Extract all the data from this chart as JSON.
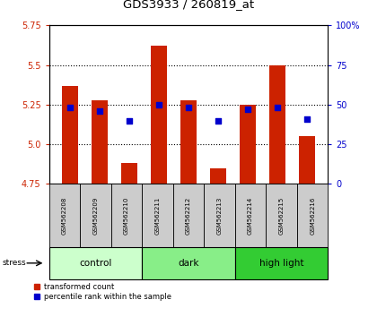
{
  "title": "GDS3933 / 260819_at",
  "samples": [
    "GSM562208",
    "GSM562209",
    "GSM562210",
    "GSM562211",
    "GSM562212",
    "GSM562213",
    "GSM562214",
    "GSM562215",
    "GSM562216"
  ],
  "bar_values": [
    5.37,
    5.28,
    4.88,
    5.62,
    5.28,
    4.85,
    5.25,
    5.5,
    5.05
  ],
  "percentile_values": [
    48,
    46,
    40,
    50,
    48,
    40,
    47,
    48,
    41
  ],
  "ylim_left": [
    4.75,
    5.75
  ],
  "ylim_right": [
    0,
    100
  ],
  "yticks_left": [
    4.75,
    5.0,
    5.25,
    5.5,
    5.75
  ],
  "yticks_right": [
    0,
    25,
    50,
    75,
    100
  ],
  "groups": [
    {
      "label": "control",
      "indices": [
        0,
        1,
        2
      ],
      "color": "#ccffcc"
    },
    {
      "label": "dark",
      "indices": [
        3,
        4,
        5
      ],
      "color": "#88ee88"
    },
    {
      "label": "high light",
      "indices": [
        6,
        7,
        8
      ],
      "color": "#33cc33"
    }
  ],
  "bar_color": "#cc2200",
  "dot_color": "#0000cc",
  "bar_bottom": 4.75,
  "background_plot": "#ffffff",
  "background_label": "#cccccc",
  "stress_label": "stress",
  "legend_labels": [
    "transformed count",
    "percentile rank within the sample"
  ],
  "grid_yticks": [
    5.0,
    5.25,
    5.5
  ]
}
